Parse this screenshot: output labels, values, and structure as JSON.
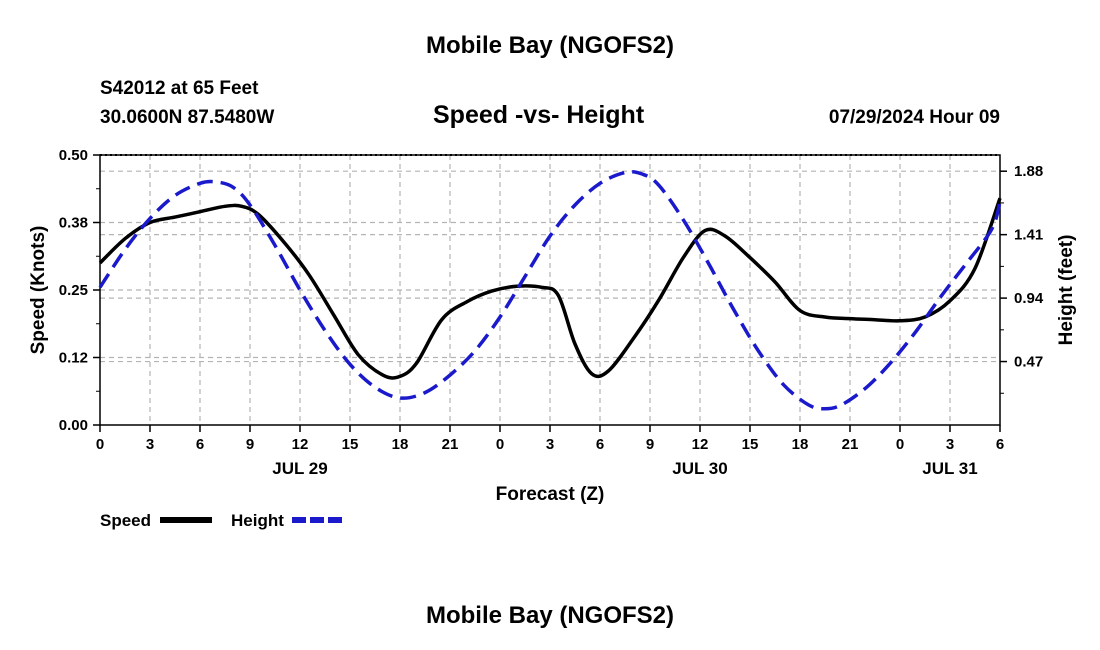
{
  "page": {
    "top_title": "Mobile Bay (NGOFS2)",
    "station": "S42012 at 65 Feet",
    "coords": "30.0600N  87.5480W",
    "subtitle": "Speed -vs- Height",
    "timestamp": "07/29/2024 Hour 09",
    "bottom_title": "Mobile Bay (NGOFS2)"
  },
  "legend": {
    "speed_label": "Speed",
    "height_label": "Height"
  },
  "colors": {
    "speed": "#000000",
    "height": "#1a1acc",
    "grid": "#b4b4b4"
  },
  "chart_data": {
    "type": "line",
    "title": "Speed -vs- Height",
    "xlabel": "Forecast (Z)",
    "ylabel": "Speed (Knots)",
    "y2label": "Height (feet)",
    "xlim": [
      0,
      54
    ],
    "ylim": [
      0,
      0.5
    ],
    "y2lim": [
      0,
      2.0
    ],
    "x_tick_positions": [
      0,
      3,
      6,
      9,
      12,
      15,
      18,
      21,
      24,
      27,
      30,
      33,
      36,
      39,
      42,
      45,
      48,
      51,
      54
    ],
    "x_tick_labels": [
      "0",
      "3",
      "6",
      "9",
      "12",
      "15",
      "18",
      "21",
      "0",
      "3",
      "6",
      "9",
      "12",
      "15",
      "18",
      "21",
      "0",
      "3",
      "6"
    ],
    "date_labels": [
      {
        "x": 12,
        "label": "JUL 29"
      },
      {
        "x": 36,
        "label": "JUL 30"
      },
      {
        "x": 51,
        "label": "JUL 31"
      }
    ],
    "y_ticks": [
      0,
      0.125,
      0.25,
      0.375,
      0.5
    ],
    "y_tick_labels": [
      "0.00",
      "0.12",
      "0.25",
      "0.38",
      "0.50"
    ],
    "y2_ticks": [
      0.47,
      0.94,
      1.41,
      1.88
    ],
    "y2_tick_labels": [
      "0.47",
      "0.94",
      "1.41",
      "1.88"
    ],
    "grid": true,
    "series": [
      {
        "name": "Speed",
        "axis": "left",
        "style": "solid",
        "x": [
          0,
          1.5,
          3,
          4.5,
          6,
          7.5,
          8.5,
          9.5,
          11,
          12.5,
          14,
          15.5,
          17,
          18,
          19,
          20.5,
          22,
          23.5,
          25,
          26.5,
          27.5,
          28.5,
          29.5,
          30.5,
          32,
          33.5,
          35,
          36.3,
          37.5,
          39,
          40.5,
          42,
          43.5,
          45,
          46.5,
          48,
          49.5,
          51,
          52.5,
          54
        ],
        "values": [
          0.3,
          0.345,
          0.375,
          0.385,
          0.395,
          0.405,
          0.405,
          0.39,
          0.34,
          0.28,
          0.205,
          0.13,
          0.092,
          0.09,
          0.115,
          0.195,
          0.228,
          0.248,
          0.257,
          0.255,
          0.24,
          0.15,
          0.095,
          0.1,
          0.16,
          0.23,
          0.31,
          0.36,
          0.35,
          0.31,
          0.265,
          0.212,
          0.2,
          0.197,
          0.195,
          0.193,
          0.2,
          0.23,
          0.29,
          0.42
        ]
      },
      {
        "name": "Height",
        "axis": "right",
        "style": "dashed",
        "x": [
          0,
          1.5,
          3,
          4.5,
          6,
          7,
          8,
          9,
          10.5,
          12,
          13.5,
          15,
          16.5,
          18,
          19.5,
          21,
          22.5,
          24,
          25.5,
          27,
          28.5,
          30,
          31.5,
          32.5,
          33.5,
          35,
          36.5,
          38,
          39.5,
          41,
          42.5,
          43.5,
          44.5,
          46,
          47.5,
          49,
          50.5,
          52,
          53.5,
          54
        ],
        "values": [
          1.02,
          1.3,
          1.53,
          1.7,
          1.79,
          1.8,
          1.76,
          1.63,
          1.33,
          1.0,
          0.7,
          0.45,
          0.28,
          0.2,
          0.24,
          0.37,
          0.55,
          0.8,
          1.1,
          1.4,
          1.63,
          1.79,
          1.87,
          1.86,
          1.78,
          1.52,
          1.2,
          0.86,
          0.55,
          0.3,
          0.15,
          0.12,
          0.15,
          0.28,
          0.47,
          0.7,
          0.96,
          1.2,
          1.45,
          1.65
        ]
      }
    ]
  }
}
